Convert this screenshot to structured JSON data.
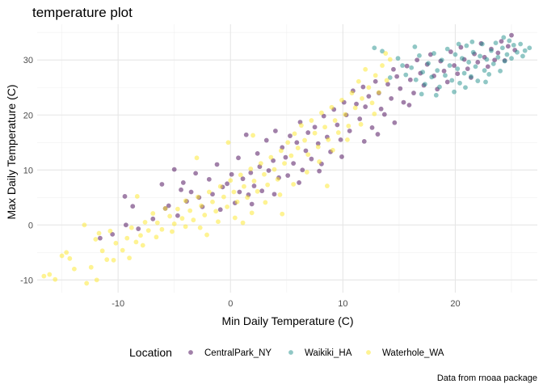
{
  "chart_data": {
    "type": "scatter",
    "title": "temperature plot",
    "xlabel": "Min Daily Temperature (C)",
    "ylabel": "Max Daily Temperature (C)",
    "caption": "Data from rnoaa package",
    "legend_title": "Location",
    "legend_position": "bottom",
    "grid": true,
    "xlim": [
      -17.2,
      27.3
    ],
    "ylim": [
      -12.3,
      36.5
    ],
    "x_ticks": [
      -10,
      0,
      10,
      20
    ],
    "x_tick_labels": [
      "-10",
      "0",
      "10",
      "20"
    ],
    "y_ticks": [
      -10,
      0,
      10,
      20,
      30
    ],
    "y_tick_labels": [
      "-10",
      "0",
      "10",
      "20",
      "30"
    ],
    "point_alpha": 0.5,
    "series": [
      {
        "name": "CentralPark_NY",
        "color": "#440154",
        "points": [
          [
            -11.6,
            -2.4
          ],
          [
            -10.5,
            -1.7
          ],
          [
            -9.4,
            5.2
          ],
          [
            -9.3,
            0.0
          ],
          [
            -8.7,
            3.4
          ],
          [
            -8.2,
            -0.7
          ],
          [
            -6.9,
            1.1
          ],
          [
            -6.1,
            7.4
          ],
          [
            -5.8,
            3.0
          ],
          [
            -5.5,
            3.5
          ],
          [
            -5.0,
            10.1
          ],
          [
            -4.7,
            1.7
          ],
          [
            -4.4,
            6.4
          ],
          [
            -4.2,
            7.7
          ],
          [
            -3.9,
            4.3
          ],
          [
            -3.5,
            6.0
          ],
          [
            -3.1,
            9.4
          ],
          [
            -2.8,
            5.0
          ],
          [
            -2.5,
            3.3
          ],
          [
            -1.9,
            8.3
          ],
          [
            -1.6,
            5.6
          ],
          [
            -1.2,
            11.0
          ],
          [
            -0.9,
            2.8
          ],
          [
            -0.7,
            6.9
          ],
          [
            -0.3,
            7.5
          ],
          [
            0.1,
            9.2
          ],
          [
            0.4,
            4.0
          ],
          [
            0.7,
            12.2
          ],
          [
            0.8,
            6.0
          ],
          [
            1.1,
            8.4
          ],
          [
            1.4,
            16.4
          ],
          [
            1.6,
            5.5
          ],
          [
            1.8,
            9.5
          ],
          [
            2.1,
            7.1
          ],
          [
            2.4,
            13.0
          ],
          [
            2.6,
            10.6
          ],
          [
            2.8,
            6.2
          ],
          [
            3.2,
            15.4
          ],
          [
            3.4,
            9.9
          ],
          [
            3.8,
            11.7
          ],
          [
            4.0,
            17.1
          ],
          [
            4.3,
            8.6
          ],
          [
            4.6,
            14.1
          ],
          [
            4.9,
            12.3
          ],
          [
            5.1,
            9.0
          ],
          [
            5.3,
            16.2
          ],
          [
            5.6,
            11.2
          ],
          [
            5.9,
            15.0
          ],
          [
            6.2,
            18.7
          ],
          [
            6.4,
            10.0
          ],
          [
            6.7,
            13.5
          ],
          [
            6.9,
            16.8
          ],
          [
            7.2,
            12.0
          ],
          [
            7.5,
            17.8
          ],
          [
            7.8,
            14.8
          ],
          [
            8.1,
            11.1
          ],
          [
            8.3,
            19.8
          ],
          [
            8.6,
            16.0
          ],
          [
            8.9,
            13.3
          ],
          [
            9.2,
            21.0
          ],
          [
            9.5,
            18.2
          ],
          [
            9.8,
            15.5
          ],
          [
            10.1,
            22.3
          ],
          [
            10.3,
            20.0
          ],
          [
            10.6,
            17.1
          ],
          [
            10.9,
            24.4
          ],
          [
            11.2,
            22.0
          ],
          [
            11.5,
            19.3
          ],
          [
            11.8,
            25.1
          ],
          [
            12.0,
            21.5
          ],
          [
            12.3,
            23.4
          ],
          [
            12.6,
            17.7
          ],
          [
            12.9,
            26.1
          ],
          [
            13.2,
            24.0
          ],
          [
            13.4,
            21.1
          ],
          [
            13.7,
            20.1
          ],
          [
            14.0,
            25.6
          ],
          [
            14.3,
            23.0
          ],
          [
            14.5,
            28.3
          ],
          [
            14.8,
            27.0
          ],
          [
            15.1,
            24.8
          ],
          [
            15.4,
            22.3
          ],
          [
            15.7,
            28.9
          ],
          [
            16.0,
            26.4
          ],
          [
            16.3,
            24.0
          ],
          [
            16.6,
            30.0
          ],
          [
            16.9,
            27.6
          ],
          [
            17.2,
            25.4
          ],
          [
            17.5,
            29.2
          ],
          [
            17.8,
            31.0
          ],
          [
            18.1,
            27.1
          ],
          [
            18.4,
            24.7
          ],
          [
            18.7,
            29.8
          ],
          [
            19.0,
            28.0
          ],
          [
            19.3,
            26.0
          ],
          [
            19.6,
            31.5
          ],
          [
            19.9,
            29.0
          ],
          [
            20.2,
            27.5
          ],
          [
            20.5,
            32.3
          ],
          [
            20.8,
            30.1
          ],
          [
            21.1,
            28.4
          ],
          [
            21.4,
            26.8
          ],
          [
            21.7,
            31.1
          ],
          [
            22.0,
            29.6
          ],
          [
            22.3,
            33.0
          ],
          [
            22.6,
            30.5
          ],
          [
            22.9,
            28.8
          ],
          [
            23.2,
            32.0
          ],
          [
            23.5,
            30.0
          ],
          [
            23.8,
            31.3
          ],
          [
            24.1,
            33.4
          ],
          [
            24.4,
            29.9
          ],
          [
            24.7,
            32.5
          ],
          [
            25.0,
            34.5
          ],
          [
            25.3,
            31.8
          ],
          [
            15.9,
            21.8
          ],
          [
            14.6,
            18.6
          ],
          [
            13.1,
            16.5
          ],
          [
            11.9,
            15.2
          ],
          [
            9.9,
            12.4
          ],
          [
            7.9,
            9.8
          ],
          [
            6.1,
            7.7
          ],
          [
            3.9,
            5.6
          ],
          [
            1.9,
            3.8
          ]
        ]
      },
      {
        "name": "Waikiki_HA",
        "color": "#21908C",
        "points": [
          [
            12.8,
            32.2
          ],
          [
            13.5,
            31.6
          ],
          [
            14.9,
            30.3
          ],
          [
            15.6,
            27.3
          ],
          [
            16.1,
            28.6
          ],
          [
            16.5,
            26.4
          ],
          [
            16.8,
            30.8
          ],
          [
            17.1,
            27.8
          ],
          [
            17.3,
            25.6
          ],
          [
            17.6,
            29.4
          ],
          [
            17.9,
            26.9
          ],
          [
            18.1,
            31.2
          ],
          [
            18.4,
            28.1
          ],
          [
            18.6,
            25.1
          ],
          [
            18.8,
            30.0
          ],
          [
            19.1,
            27.2
          ],
          [
            19.3,
            32.0
          ],
          [
            19.5,
            29.0
          ],
          [
            19.7,
            26.3
          ],
          [
            20.0,
            31.0
          ],
          [
            20.2,
            28.4
          ],
          [
            20.4,
            25.8
          ],
          [
            20.6,
            30.3
          ],
          [
            20.8,
            27.6
          ],
          [
            21.0,
            32.6
          ],
          [
            21.2,
            29.6
          ],
          [
            21.4,
            27.0
          ],
          [
            21.6,
            31.4
          ],
          [
            21.8,
            28.8
          ],
          [
            22.0,
            26.2
          ],
          [
            22.2,
            30.7
          ],
          [
            22.4,
            32.9
          ],
          [
            22.6,
            28.1
          ],
          [
            22.8,
            30.1
          ],
          [
            23.0,
            27.4
          ],
          [
            23.2,
            31.7
          ],
          [
            23.4,
            29.3
          ],
          [
            23.6,
            33.1
          ],
          [
            23.8,
            30.5
          ],
          [
            24.0,
            28.0
          ],
          [
            24.2,
            32.2
          ],
          [
            24.4,
            29.8
          ],
          [
            24.6,
            31.0
          ],
          [
            24.8,
            33.5
          ],
          [
            25.0,
            30.3
          ],
          [
            25.2,
            32.7
          ],
          [
            25.5,
            31.4
          ],
          [
            25.8,
            32.9
          ],
          [
            26.2,
            31.7
          ],
          [
            26.6,
            32.2
          ],
          [
            18.3,
            23.6
          ],
          [
            17.0,
            23.8
          ],
          [
            20.9,
            25.0
          ],
          [
            19.9,
            24.2
          ],
          [
            22.7,
            26.0
          ],
          [
            21.5,
            33.3
          ],
          [
            20.3,
            32.9
          ],
          [
            24.3,
            34.1
          ],
          [
            16.4,
            32.4
          ],
          [
            15.3,
            29.0
          ],
          [
            14.2,
            26.8
          ],
          [
            26.0,
            30.7
          ]
        ]
      },
      {
        "name": "Waterhole_WA",
        "color": "#FDE725",
        "points": [
          [
            -16.6,
            -9.3
          ],
          [
            -16.1,
            -9.0
          ],
          [
            -15.6,
            -9.9
          ],
          [
            -14.6,
            -5.0
          ],
          [
            -14.3,
            -6.1
          ],
          [
            -13.0,
            0.0
          ],
          [
            -12.8,
            -10.6
          ],
          [
            -12.4,
            -7.7
          ],
          [
            -12.0,
            -2.6
          ],
          [
            -11.7,
            -1.5
          ],
          [
            -11.4,
            -4.7
          ],
          [
            -11.0,
            -6.3
          ],
          [
            -10.7,
            -1.1
          ],
          [
            -10.2,
            -3.3
          ],
          [
            -9.6,
            -4.6
          ],
          [
            -9.2,
            -2.4
          ],
          [
            -8.8,
            -0.5
          ],
          [
            -8.4,
            -3.1
          ],
          [
            -8.0,
            -1.9
          ],
          [
            -7.6,
            0.5
          ],
          [
            -7.3,
            -1.0
          ],
          [
            -6.9,
            2.1
          ],
          [
            -6.5,
            0.4
          ],
          [
            -6.1,
            -0.8
          ],
          [
            -5.8,
            3.0
          ],
          [
            -5.4,
            1.6
          ],
          [
            -5.0,
            0.2
          ],
          [
            -4.7,
            2.9
          ],
          [
            -4.3,
            1.2
          ],
          [
            -4.0,
            4.4
          ],
          [
            -3.6,
            2.6
          ],
          [
            -3.3,
            0.9
          ],
          [
            -2.9,
            5.1
          ],
          [
            -2.6,
            3.5
          ],
          [
            -2.3,
            1.8
          ],
          [
            -1.9,
            6.0
          ],
          [
            -1.6,
            4.2
          ],
          [
            -1.3,
            2.5
          ],
          [
            -0.9,
            7.0
          ],
          [
            -0.6,
            5.1
          ],
          [
            -0.3,
            3.3
          ],
          [
            0.0,
            8.1
          ],
          [
            0.3,
            6.0
          ],
          [
            0.6,
            4.2
          ],
          [
            0.9,
            9.1
          ],
          [
            1.2,
            7.0
          ],
          [
            1.5,
            5.0
          ],
          [
            1.8,
            10.2
          ],
          [
            2.1,
            8.0
          ],
          [
            2.4,
            6.1
          ],
          [
            2.7,
            11.2
          ],
          [
            3.0,
            9.2
          ],
          [
            3.3,
            7.3
          ],
          [
            3.6,
            12.3
          ],
          [
            3.9,
            10.1
          ],
          [
            4.2,
            8.3
          ],
          [
            4.5,
            13.5
          ],
          [
            4.8,
            11.2
          ],
          [
            5.1,
            15.0
          ],
          [
            5.4,
            12.6
          ],
          [
            5.7,
            16.6
          ],
          [
            6.0,
            14.0
          ],
          [
            6.3,
            18.1
          ],
          [
            6.6,
            15.4
          ],
          [
            6.9,
            12.8
          ],
          [
            7.2,
            19.0
          ],
          [
            7.5,
            16.7
          ],
          [
            7.8,
            14.2
          ],
          [
            8.1,
            20.4
          ],
          [
            8.4,
            17.8
          ],
          [
            8.7,
            15.5
          ],
          [
            9.0,
            21.4
          ],
          [
            9.3,
            19.0
          ],
          [
            9.6,
            16.8
          ],
          [
            9.9,
            22.7
          ],
          [
            10.2,
            20.1
          ],
          [
            10.5,
            18.0
          ],
          [
            10.8,
            24.0
          ],
          [
            11.1,
            21.3
          ],
          [
            11.4,
            26.1
          ],
          [
            11.7,
            23.0
          ],
          [
            12.0,
            28.3
          ],
          [
            12.3,
            25.0
          ],
          [
            12.6,
            22.2
          ],
          [
            12.9,
            27.2
          ],
          [
            13.2,
            24.1
          ],
          [
            13.5,
            29.0
          ],
          [
            13.9,
            26.3
          ],
          [
            14.2,
            30.1
          ],
          [
            -15.0,
            -5.6
          ],
          [
            -13.9,
            -8.0
          ],
          [
            -11.9,
            -10.0
          ],
          [
            -10.4,
            -6.4
          ],
          [
            -9.0,
            -6.0
          ],
          [
            -7.8,
            -3.7
          ],
          [
            -6.6,
            -2.2
          ],
          [
            -5.2,
            -1.2
          ],
          [
            -4.0,
            -0.3
          ],
          [
            -2.7,
            -0.5
          ],
          [
            -1.1,
            0.6
          ],
          [
            0.4,
            1.3
          ],
          [
            1.9,
            2.2
          ],
          [
            3.1,
            4.1
          ],
          [
            4.4,
            5.5
          ],
          [
            5.6,
            7.4
          ],
          [
            6.8,
            9.6
          ],
          [
            7.9,
            11.5
          ],
          [
            9.1,
            13.6
          ],
          [
            10.4,
            15.5
          ],
          [
            11.6,
            18.3
          ],
          [
            12.8,
            20.2
          ],
          [
            13.8,
            31.2
          ],
          [
            -0.2,
            15.0
          ],
          [
            2.0,
            16.3
          ],
          [
            -3.0,
            12.2
          ],
          [
            -8.3,
            5.2
          ],
          [
            1.1,
            0.4
          ],
          [
            4.6,
            2.0
          ],
          [
            -2.1,
            -1.8
          ],
          [
            8.6,
            7.1
          ]
        ]
      }
    ]
  }
}
